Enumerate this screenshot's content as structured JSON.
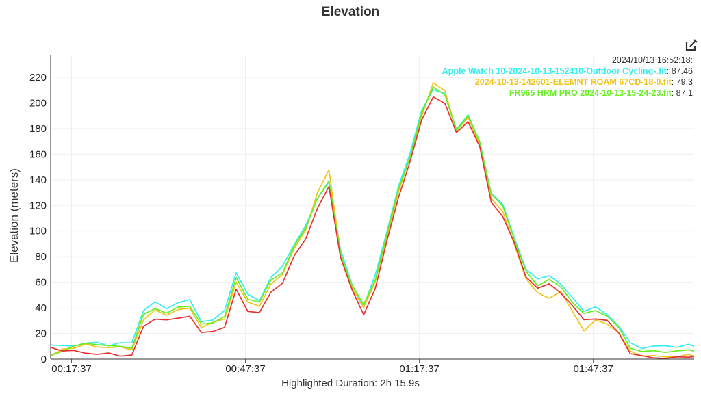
{
  "chart_data": {
    "type": "line",
    "title": "Elevation",
    "ylabel": "Elevation (meters)",
    "ylim": [
      0,
      230
    ],
    "yticks": [
      0,
      20,
      40,
      60,
      80,
      100,
      120,
      140,
      160,
      180,
      200,
      220
    ],
    "xlim_minutes": [
      14,
      125
    ],
    "xticks": [
      {
        "label": "00:17:37",
        "minutes": 17.6
      },
      {
        "label": "00:47:37",
        "minutes": 47.6
      },
      {
        "label": "01:17:37",
        "minutes": 77.6
      },
      {
        "label": "01:47:37",
        "minutes": 107.6
      }
    ],
    "x_minutes": [
      14,
      16,
      18,
      20,
      22,
      24,
      26,
      28,
      30,
      32,
      34,
      36,
      38,
      40,
      42,
      44,
      46,
      48,
      50,
      52,
      54,
      56,
      58,
      60,
      62,
      64,
      66,
      68,
      70,
      72,
      74,
      76,
      78,
      80,
      82,
      84,
      86,
      88,
      90,
      92,
      94,
      96,
      98,
      100,
      102,
      104,
      106,
      108,
      110,
      112,
      114,
      116,
      118,
      120,
      122,
      124,
      125
    ],
    "series": [
      {
        "name": "Apple Watch 10-2024-10-13-152410-Outdoor Cycling-.fit",
        "color": "#33eeee",
        "values": [
          11,
          10,
          11,
          12,
          13,
          11,
          12,
          13,
          38,
          44,
          40,
          44,
          46,
          30,
          30,
          38,
          68,
          50,
          46,
          64,
          72,
          90,
          104,
          125,
          140,
          85,
          58,
          42,
          65,
          100,
          135,
          160,
          195,
          210,
          207,
          180,
          190,
          170,
          130,
          120,
          95,
          70,
          62,
          66,
          58,
          48,
          38,
          40,
          35,
          26,
          12,
          9,
          10,
          10,
          10,
          11,
          10
        ]
      },
      {
        "name": "2024-10-13-142601-ELEMNT ROAM 67CD-18-0.fit",
        "color": "#f0c419",
        "values": [
          2,
          8,
          9,
          11,
          10,
          9,
          9,
          8,
          30,
          38,
          35,
          38,
          40,
          25,
          28,
          32,
          60,
          44,
          42,
          58,
          66,
          87,
          100,
          130,
          148,
          82,
          56,
          40,
          60,
          96,
          130,
          158,
          190,
          215,
          210,
          178,
          188,
          168,
          125,
          115,
          90,
          62,
          52,
          48,
          52,
          38,
          22,
          30,
          28,
          20,
          6,
          3,
          2,
          2,
          2,
          3,
          3
        ]
      },
      {
        "name": "FR965 HRM PRO 2024-10-13-15-24-23.fit",
        "color": "#66ee22",
        "values": [
          2,
          7,
          10,
          12,
          12,
          10,
          10,
          9,
          34,
          40,
          36,
          40,
          42,
          27,
          28,
          34,
          63,
          47,
          45,
          61,
          68,
          88,
          102,
          126,
          138,
          82,
          58,
          42,
          62,
          98,
          132,
          158,
          192,
          212,
          207,
          178,
          190,
          170,
          128,
          120,
          93,
          68,
          58,
          62,
          56,
          45,
          35,
          38,
          34,
          24,
          9,
          6,
          6,
          6,
          6,
          7,
          7
        ]
      },
      {
        "color": "#e83030",
        "values": [
          9,
          7,
          6,
          5,
          4,
          4,
          3,
          3,
          25,
          32,
          30,
          32,
          34,
          20,
          22,
          25,
          54,
          38,
          36,
          52,
          60,
          80,
          94,
          118,
          134,
          80,
          54,
          34,
          56,
          92,
          126,
          155,
          186,
          205,
          200,
          176,
          186,
          166,
          122,
          112,
          90,
          64,
          56,
          58,
          52,
          42,
          30,
          32,
          30,
          20,
          5,
          2,
          1,
          1,
          1,
          2,
          2
        ]
      }
    ],
    "tooltip": {
      "time": "2024/10/13 16:52:18:",
      "entries": [
        {
          "name": "Apple Watch 10-2024-10-13-152410-Outdoor Cycling-.fit",
          "value": "87.46",
          "color": "#33eeee"
        },
        {
          "name": "2024-10-13-142601-ELEMNT ROAM 67CD-18-0.fit",
          "value": "79.3",
          "color": "#f0c419"
        },
        {
          "name": "FR965 HRM PRO 2024-10-13-15-24-23.fit",
          "value": "87.1",
          "color": "#66ee22"
        }
      ]
    },
    "grid": true,
    "legend": "top-right"
  },
  "footer": {
    "label": "Highlighted Duration: 2h 15.9s"
  },
  "toolbar": {
    "edit_icon": "edit-icon"
  }
}
